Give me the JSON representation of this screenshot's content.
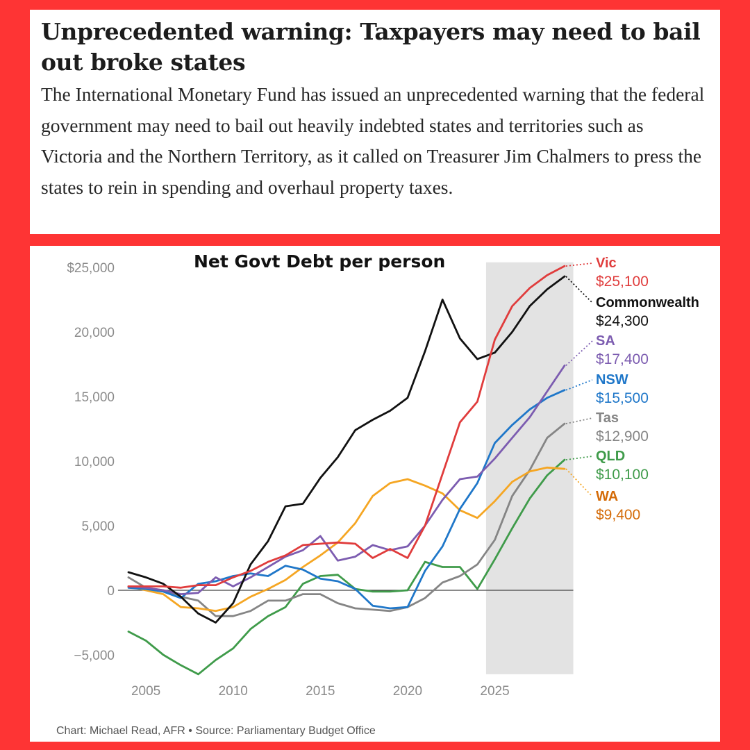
{
  "article": {
    "headline": "Unprecedented warning: Taxpayers may need to bail out broke states",
    "standfirst": "The International Monetary Fund has issued an unprecedented warning that the federal government may need to bail out heavily indebted states and territories such as Victoria and the Northern Territory, as it called on Treasurer Jim Chalmers to press the states to rein in spending and overhaul property taxes."
  },
  "chart_data": {
    "type": "line",
    "title": "Net Govt Debt per person",
    "source": "Chart: Michael Read, AFR • Source: Parliamentary Budget Office",
    "xlim": [
      2003,
      2030
    ],
    "ylim": [
      -6500,
      25500
    ],
    "y_ticks": [
      {
        "value": 25000,
        "label": "$25,000"
      },
      {
        "value": 20000,
        "label": "20,000"
      },
      {
        "value": 15000,
        "label": "15,000"
      },
      {
        "value": 10000,
        "label": "10,000"
      },
      {
        "value": 5000,
        "label": "5,000"
      },
      {
        "value": 0,
        "label": "0"
      },
      {
        "value": -5000,
        "label": "−5,000"
      }
    ],
    "x_ticks": [
      {
        "value": 2005,
        "label": "2005"
      },
      {
        "value": 2010,
        "label": "2010"
      },
      {
        "value": 2015,
        "label": "2015"
      },
      {
        "value": 2020,
        "label": "2020"
      },
      {
        "value": 2025,
        "label": "2025"
      }
    ],
    "forecast_region": [
      2024.5,
      2029.5
    ],
    "x": [
      2004,
      2005,
      2006,
      2007,
      2008,
      2009,
      2010,
      2011,
      2012,
      2013,
      2014,
      2015,
      2016,
      2017,
      2018,
      2019,
      2020,
      2021,
      2022,
      2023,
      2024,
      2025,
      2026,
      2027,
      2028,
      2029
    ],
    "series": [
      {
        "name": "Vic",
        "value_label": "$25,100",
        "color": "#e03c3c",
        "values": [
          300,
          300,
          300,
          200,
          400,
          400,
          1000,
          1500,
          2200,
          2700,
          3500,
          3600,
          3700,
          3600,
          2500,
          3200,
          2500,
          5000,
          9000,
          13000,
          14600,
          19400,
          22000,
          23400,
          24400,
          25100
        ]
      },
      {
        "name": "Commonwealth",
        "value_label": "$24,300",
        "color": "#111111",
        "values": [
          1400,
          1000,
          500,
          -500,
          -1800,
          -2500,
          -1000,
          2000,
          3800,
          6500,
          6700,
          8700,
          10300,
          12400,
          13200,
          13900,
          14900,
          18500,
          22500,
          19500,
          17900,
          18400,
          20000,
          22000,
          23300,
          24300
        ]
      },
      {
        "name": "SA",
        "value_label": "$17,400",
        "color": "#7c5cb0",
        "values": [
          300,
          200,
          0,
          -300,
          -200,
          1000,
          300,
          1000,
          1800,
          2600,
          3100,
          4200,
          2300,
          2600,
          3500,
          3100,
          3400,
          5000,
          7000,
          8600,
          8800,
          10200,
          11800,
          13400,
          15400,
          17400
        ]
      },
      {
        "name": "NSW",
        "value_label": "$15,500",
        "color": "#1f77c9",
        "values": [
          200,
          100,
          -100,
          -600,
          500,
          700,
          1100,
          1300,
          1100,
          1900,
          1600,
          900,
          700,
          100,
          -1200,
          -1400,
          -1300,
          1500,
          3400,
          6300,
          8300,
          11400,
          12800,
          14000,
          14900,
          15500
        ]
      },
      {
        "name": "Tas",
        "value_label": "$12,900",
        "color": "#858585",
        "values": [
          1000,
          200,
          0,
          -500,
          -800,
          -2000,
          -2000,
          -1600,
          -800,
          -800,
          -300,
          -300,
          -1000,
          -1400,
          -1500,
          -1600,
          -1300,
          -600,
          600,
          1100,
          2000,
          3900,
          7300,
          9300,
          11800,
          12900
        ]
      },
      {
        "name": "QLD",
        "value_label": "$10,100",
        "color": "#3f9b4a",
        "values": [
          -3200,
          -3900,
          -5000,
          -5800,
          -6500,
          -5400,
          -4500,
          -3000,
          -2000,
          -1300,
          500,
          1100,
          1200,
          100,
          -100,
          -100,
          0,
          2200,
          1800,
          1800,
          100,
          2400,
          4800,
          7100,
          8900,
          10100
        ]
      },
      {
        "name": "WA",
        "value_label": "$9,400",
        "color": "#f5a623",
        "label_color": "#d46b08",
        "values": [
          300,
          0,
          -300,
          -1300,
          -1400,
          -1600,
          -1300,
          -500,
          100,
          800,
          1800,
          2700,
          3700,
          5200,
          7300,
          8300,
          8600,
          8100,
          7500,
          6200,
          5600,
          6900,
          8400,
          9200,
          9500,
          9400
        ]
      }
    ]
  }
}
